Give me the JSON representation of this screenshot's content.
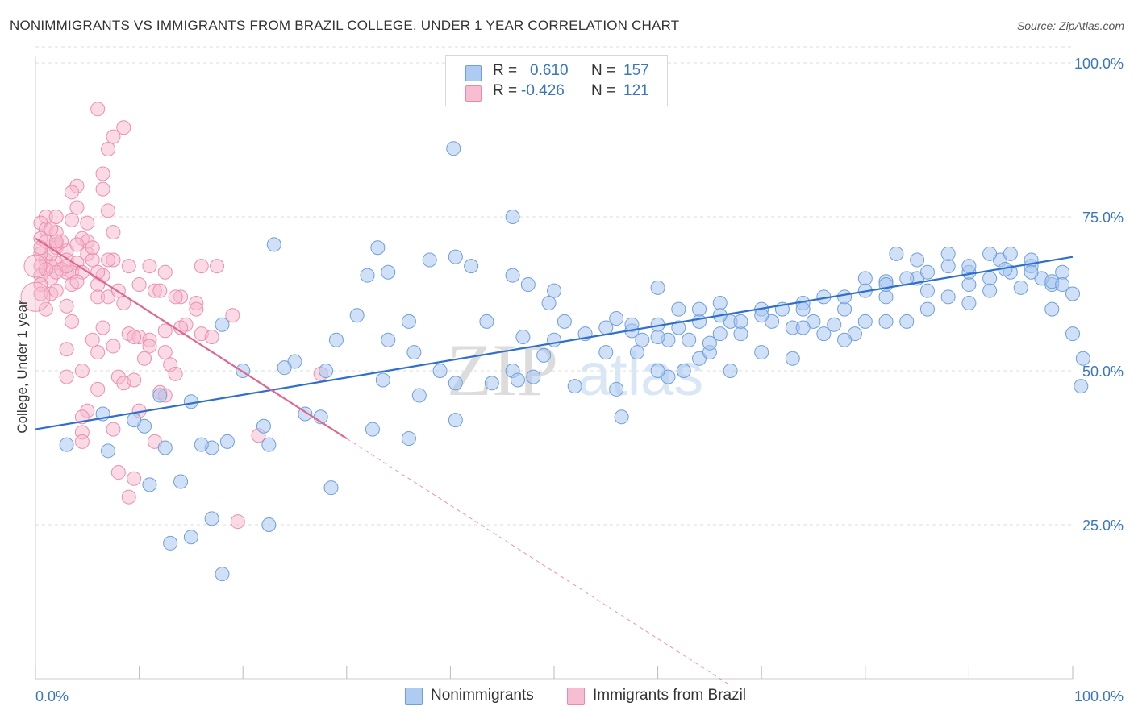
{
  "title": "NONIMMIGRANTS VS IMMIGRANTS FROM BRAZIL COLLEGE, UNDER 1 YEAR CORRELATION CHART",
  "source_label": "Source: ZipAtlas.com",
  "watermark": {
    "zip": "ZIP",
    "atlas": "atlas"
  },
  "legend_top": {
    "rows": [
      {
        "r_label": "R =",
        "r_value": "0.610",
        "n_label": "N =",
        "n_value": "157",
        "color": "#aecbf2",
        "border": "#6f9fdc"
      },
      {
        "r_label": "R =",
        "r_value": "-0.426",
        "n_label": "N =",
        "n_value": "121",
        "color": "#f7bdd0",
        "border": "#e88aa8"
      }
    ]
  },
  "legend_bottom": [
    {
      "label": "Nonimmigrants",
      "color": "#aecbf2",
      "border": "#6f9fdc"
    },
    {
      "label": "Immigrants from Brazil",
      "color": "#f7bdd0",
      "border": "#e88aa8"
    }
  ],
  "colors": {
    "blue_fill": "#a9c8f0",
    "blue_stroke": "#6f9fdc",
    "blue_line": "#2f6fce",
    "pink_fill": "#f6b8cc",
    "pink_stroke": "#ec8fae",
    "pink_line": "#e0688f",
    "tick_label": "#3a75c4",
    "grid": "#dddddd"
  },
  "chart_data": {
    "type": "scatter",
    "title": "NONIMMIGRANTS VS IMMIGRANTS FROM BRAZIL COLLEGE, UNDER 1 YEAR CORRELATION CHART",
    "xlabel": "",
    "ylabel": "College, Under 1 year",
    "xlim": [
      0,
      100
    ],
    "ylim": [
      0,
      105
    ],
    "x_tick_labels": [
      "0.0%",
      "100.0%"
    ],
    "y_tick_labels": [
      "25.0%",
      "50.0%",
      "75.0%",
      "100.0%"
    ],
    "y_ticks": [
      25,
      50,
      75,
      100
    ],
    "grid": true,
    "legend_placement": "top-center",
    "series": [
      {
        "name": "Nonimmigrants",
        "R": 0.61,
        "N": 157,
        "trend": {
          "x": [
            0,
            100
          ],
          "y": [
            40.5,
            68.5
          ],
          "style": "solid"
        },
        "points": [
          [
            40.3,
            86.1
          ],
          [
            33,
            70
          ],
          [
            40.5,
            68.5
          ],
          [
            46,
            75
          ],
          [
            23,
            70.5
          ],
          [
            42,
            67
          ],
          [
            34,
            66
          ],
          [
            38,
            68
          ],
          [
            32,
            65.5
          ],
          [
            46,
            65.5
          ],
          [
            47.5,
            64
          ],
          [
            50,
            63
          ],
          [
            60,
            63.5
          ],
          [
            49.5,
            61
          ],
          [
            43.5,
            58
          ],
          [
            31,
            59
          ],
          [
            18,
            57.5
          ],
          [
            29,
            55
          ],
          [
            34,
            55
          ],
          [
            36.5,
            53
          ],
          [
            36,
            58
          ],
          [
            47,
            55.5
          ],
          [
            50,
            55
          ],
          [
            56,
            58.5
          ],
          [
            57.5,
            56.5
          ],
          [
            58.5,
            55
          ],
          [
            61,
            55
          ],
          [
            64,
            52
          ],
          [
            65,
            53
          ],
          [
            67,
            50
          ],
          [
            70,
            53
          ],
          [
            73,
            52
          ],
          [
            61,
            49
          ],
          [
            62.5,
            50
          ],
          [
            55,
            57
          ],
          [
            57.5,
            57.5
          ],
          [
            60,
            57.5
          ],
          [
            64,
            58
          ],
          [
            66,
            56
          ],
          [
            68,
            56
          ],
          [
            71,
            58
          ],
          [
            73,
            57
          ],
          [
            75,
            58
          ],
          [
            77,
            57.5
          ],
          [
            79,
            56
          ],
          [
            80,
            58
          ],
          [
            82,
            58
          ],
          [
            84,
            58
          ],
          [
            86,
            60
          ],
          [
            88,
            62
          ],
          [
            90,
            64
          ],
          [
            92,
            65
          ],
          [
            94,
            66
          ],
          [
            96,
            67
          ],
          [
            98,
            64
          ],
          [
            62,
            60
          ],
          [
            66,
            61
          ],
          [
            70,
            60
          ],
          [
            74,
            61
          ],
          [
            78,
            60
          ],
          [
            82,
            62
          ],
          [
            86,
            63
          ],
          [
            90,
            61
          ],
          [
            92,
            63
          ],
          [
            95,
            63.5
          ],
          [
            97,
            65
          ],
          [
            99,
            66
          ],
          [
            100,
            62.5
          ],
          [
            98,
            60
          ],
          [
            100,
            56
          ],
          [
            101,
            52
          ],
          [
            100.8,
            47.5
          ],
          [
            80,
            65
          ],
          [
            82,
            64.5
          ],
          [
            85,
            65
          ],
          [
            88,
            67
          ],
          [
            90,
            66
          ],
          [
            93,
            68
          ],
          [
            96,
            68
          ],
          [
            94,
            69
          ],
          [
            92,
            69
          ],
          [
            88,
            69
          ],
          [
            85,
            68
          ],
          [
            83,
            69
          ],
          [
            90,
            67
          ],
          [
            96,
            66
          ],
          [
            93.5,
            66.5
          ],
          [
            98,
            64.5
          ],
          [
            99,
            64
          ],
          [
            63,
            55
          ],
          [
            67,
            58
          ],
          [
            65,
            54.5
          ],
          [
            60,
            50
          ],
          [
            55,
            53
          ],
          [
            52,
            47.5
          ],
          [
            48,
            49
          ],
          [
            46,
            50
          ],
          [
            44,
            48
          ],
          [
            40.5,
            48
          ],
          [
            39,
            50
          ],
          [
            37,
            46
          ],
          [
            33.5,
            48.5
          ],
          [
            28,
            50
          ],
          [
            25,
            51.5
          ],
          [
            24,
            50.5
          ],
          [
            20,
            50
          ],
          [
            15,
            45
          ],
          [
            12,
            46
          ],
          [
            22,
            41
          ],
          [
            27.5,
            42.5
          ],
          [
            32.5,
            40.5
          ],
          [
            26,
            43
          ],
          [
            22.5,
            38
          ],
          [
            18.5,
            38.5
          ],
          [
            17,
            37.5
          ],
          [
            16,
            38
          ],
          [
            12.5,
            37.5
          ],
          [
            10.5,
            41
          ],
          [
            9.5,
            42
          ],
          [
            7,
            37
          ],
          [
            11,
            31.5
          ],
          [
            28.5,
            31
          ],
          [
            36,
            39
          ],
          [
            40.5,
            42
          ],
          [
            46.5,
            48.5
          ],
          [
            49,
            52.5
          ],
          [
            51,
            58
          ],
          [
            53,
            56
          ],
          [
            56,
            47
          ],
          [
            58,
            53
          ],
          [
            60,
            55.5
          ],
          [
            62,
            57
          ],
          [
            64,
            60
          ],
          [
            66,
            59
          ],
          [
            68,
            58
          ],
          [
            70,
            59
          ],
          [
            72,
            60
          ],
          [
            74,
            60
          ],
          [
            76,
            62
          ],
          [
            78,
            62
          ],
          [
            80,
            63
          ],
          [
            82,
            64
          ],
          [
            84,
            65
          ],
          [
            86,
            66
          ],
          [
            74,
            57
          ],
          [
            76,
            56
          ],
          [
            78,
            55
          ],
          [
            56.5,
            42.5
          ],
          [
            6.5,
            43
          ],
          [
            3,
            38
          ],
          [
            14,
            32
          ],
          [
            17,
            26
          ],
          [
            22.5,
            25
          ],
          [
            13,
            22
          ],
          [
            15,
            23
          ],
          [
            18,
            17
          ]
        ]
      },
      {
        "name": "Immigrants from Brazil",
        "R": -0.426,
        "N": 121,
        "trend": {
          "x": [
            0,
            30
          ],
          "y": [
            71.5,
            39
          ],
          "style": "solid",
          "extended_to_x": 67,
          "extended_style": "dashed"
        },
        "points": [
          [
            6,
            92.5
          ],
          [
            8.5,
            89.5
          ],
          [
            7.5,
            88
          ],
          [
            7,
            86
          ],
          [
            6.5,
            82
          ],
          [
            6.5,
            79.5
          ],
          [
            4,
            80
          ],
          [
            3.5,
            79
          ],
          [
            4,
            76.5
          ],
          [
            7,
            76
          ],
          [
            1,
            75
          ],
          [
            2,
            75
          ],
          [
            3.5,
            74.5
          ],
          [
            5,
            74
          ],
          [
            0.5,
            74
          ],
          [
            1,
            73
          ],
          [
            2,
            72.5
          ],
          [
            7.5,
            72.5
          ],
          [
            4.5,
            71.5
          ],
          [
            0.5,
            71.5
          ],
          [
            1,
            71
          ],
          [
            2,
            70
          ],
          [
            3,
            69.5
          ],
          [
            5,
            69
          ],
          [
            1,
            68
          ],
          [
            2,
            67.5
          ],
          [
            3,
            68
          ],
          [
            4,
            67.5
          ],
          [
            5.5,
            68
          ],
          [
            7.5,
            68
          ],
          [
            0.5,
            67
          ],
          [
            1.5,
            67
          ],
          [
            2.5,
            66.5
          ],
          [
            3.5,
            66
          ],
          [
            4.5,
            66
          ],
          [
            6.5,
            65.5
          ],
          [
            11,
            67
          ],
          [
            12.5,
            66
          ],
          [
            16,
            67
          ],
          [
            0.5,
            65.5
          ],
          [
            1.5,
            65
          ],
          [
            3.5,
            64
          ],
          [
            6,
            64
          ],
          [
            0.5,
            64
          ],
          [
            0.5,
            62.5
          ],
          [
            6,
            62
          ],
          [
            7,
            62
          ],
          [
            8,
            63
          ],
          [
            11.5,
            63
          ],
          [
            12,
            63
          ],
          [
            14,
            62
          ],
          [
            15.5,
            61
          ],
          [
            1,
            60
          ],
          [
            3.5,
            58
          ],
          [
            6.5,
            57
          ],
          [
            9,
            56
          ],
          [
            10,
            55.5
          ],
          [
            11,
            55
          ],
          [
            12.5,
            56.5
          ],
          [
            14.5,
            57.5
          ],
          [
            16,
            56
          ],
          [
            17,
            55.5
          ],
          [
            6,
            53
          ],
          [
            11,
            54
          ],
          [
            12.5,
            53
          ],
          [
            3,
            53.5
          ],
          [
            4.5,
            50
          ],
          [
            8,
            49
          ],
          [
            8.5,
            48
          ],
          [
            9.5,
            48.5
          ],
          [
            13,
            51
          ],
          [
            13.5,
            49.5
          ],
          [
            3,
            49
          ],
          [
            5,
            43.5
          ],
          [
            4.5,
            42.5
          ],
          [
            4.5,
            40
          ],
          [
            4.5,
            38.5
          ],
          [
            7.5,
            40.5
          ],
          [
            8,
            33.5
          ],
          [
            9,
            29.5
          ],
          [
            12,
            46.5
          ],
          [
            19,
            59
          ],
          [
            21.5,
            39.5
          ],
          [
            27.5,
            49.5
          ],
          [
            19.5,
            25.5
          ],
          [
            2,
            70.5
          ],
          [
            1.5,
            69
          ],
          [
            2.5,
            71
          ],
          [
            3,
            66
          ],
          [
            2,
            66
          ],
          [
            1,
            66.5
          ],
          [
            0.5,
            69
          ],
          [
            0.5,
            70
          ],
          [
            1.5,
            73
          ],
          [
            2,
            71
          ],
          [
            5,
            71
          ],
          [
            5.5,
            70
          ],
          [
            4,
            70.5
          ],
          [
            3,
            67
          ],
          [
            4,
            64.5
          ],
          [
            6,
            66
          ],
          [
            7,
            68
          ],
          [
            9,
            67
          ],
          [
            10,
            64
          ],
          [
            8.5,
            61
          ],
          [
            13.5,
            62
          ],
          [
            15.5,
            60
          ],
          [
            17.5,
            67
          ],
          [
            14,
            57
          ],
          [
            9.5,
            55.5
          ],
          [
            10.5,
            52
          ],
          [
            6,
            47
          ],
          [
            12.5,
            46
          ],
          [
            10,
            43.5
          ],
          [
            11.5,
            38.5
          ],
          [
            9.5,
            32.5
          ],
          [
            1.5,
            62.5
          ],
          [
            3,
            60.5
          ],
          [
            5.5,
            55
          ],
          [
            7.5,
            54
          ],
          [
            2,
            63
          ]
        ]
      }
    ]
  }
}
